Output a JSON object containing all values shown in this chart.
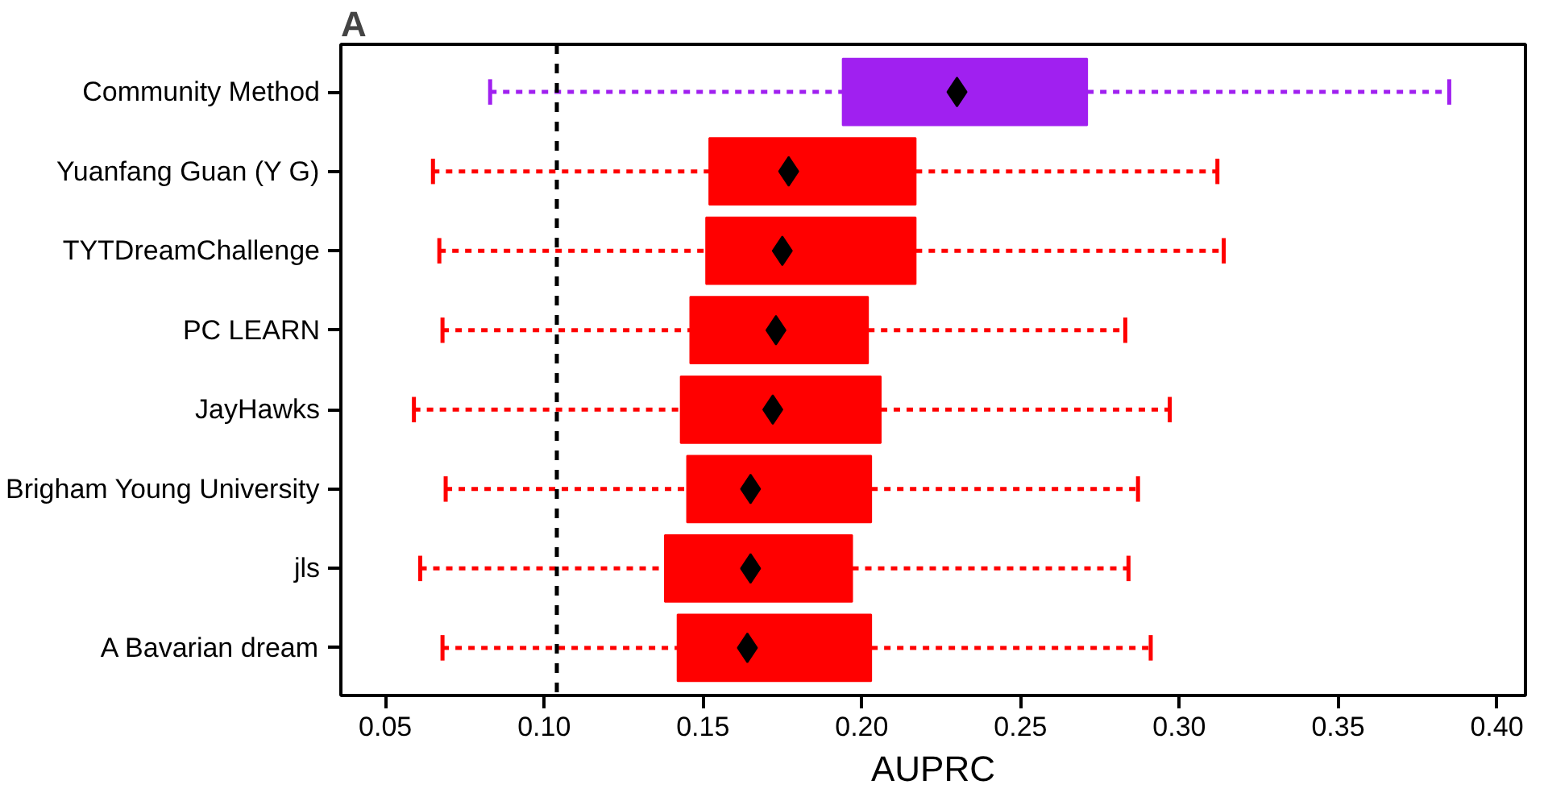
{
  "chart_data": {
    "type": "box",
    "orientation": "horizontal",
    "title": "A",
    "xlabel": "AUPRC",
    "categories": [
      "Community Method",
      "Yuanfang Guan (Y G)",
      "TYTDreamChallenge",
      "PC LEARN",
      "JayHawks",
      "Brigham Young University",
      "jls",
      "A Bavarian dream"
    ],
    "colors": [
      "#a020f0",
      "#ff0000",
      "#ff0000",
      "#ff0000",
      "#ff0000",
      "#ff0000",
      "#ff0000",
      "#ff0000"
    ],
    "boxes": [
      {
        "low": 0.083,
        "q1": 0.194,
        "q3": 0.271,
        "high": 0.385,
        "mean": 0.23
      },
      {
        "low": 0.065,
        "q1": 0.152,
        "q3": 0.217,
        "high": 0.312,
        "mean": 0.177
      },
      {
        "low": 0.067,
        "q1": 0.151,
        "q3": 0.217,
        "high": 0.314,
        "mean": 0.175
      },
      {
        "low": 0.068,
        "q1": 0.146,
        "q3": 0.202,
        "high": 0.283,
        "mean": 0.173
      },
      {
        "low": 0.059,
        "q1": 0.143,
        "q3": 0.206,
        "high": 0.297,
        "mean": 0.172
      },
      {
        "low": 0.069,
        "q1": 0.145,
        "q3": 0.203,
        "high": 0.287,
        "mean": 0.165
      },
      {
        "low": 0.061,
        "q1": 0.138,
        "q3": 0.197,
        "high": 0.284,
        "mean": 0.165
      },
      {
        "low": 0.068,
        "q1": 0.142,
        "q3": 0.203,
        "high": 0.291,
        "mean": 0.164
      }
    ],
    "xlim": [
      0.036,
      0.409
    ],
    "xticks": [
      0.05,
      {
        "value": 0.1,
        "label": "0.10"
      },
      0.15,
      {
        "value": 0.2,
        "label": "0.20"
      },
      0.25,
      {
        "value": 0.3,
        "label": "0.30"
      },
      0.35,
      {
        "value": 0.4,
        "label": "0.40"
      }
    ],
    "ref_lines": [
      {
        "axis": "x",
        "value": 0.104,
        "line_style": "dashed",
        "color": "#000000"
      }
    ],
    "grid": false
  }
}
